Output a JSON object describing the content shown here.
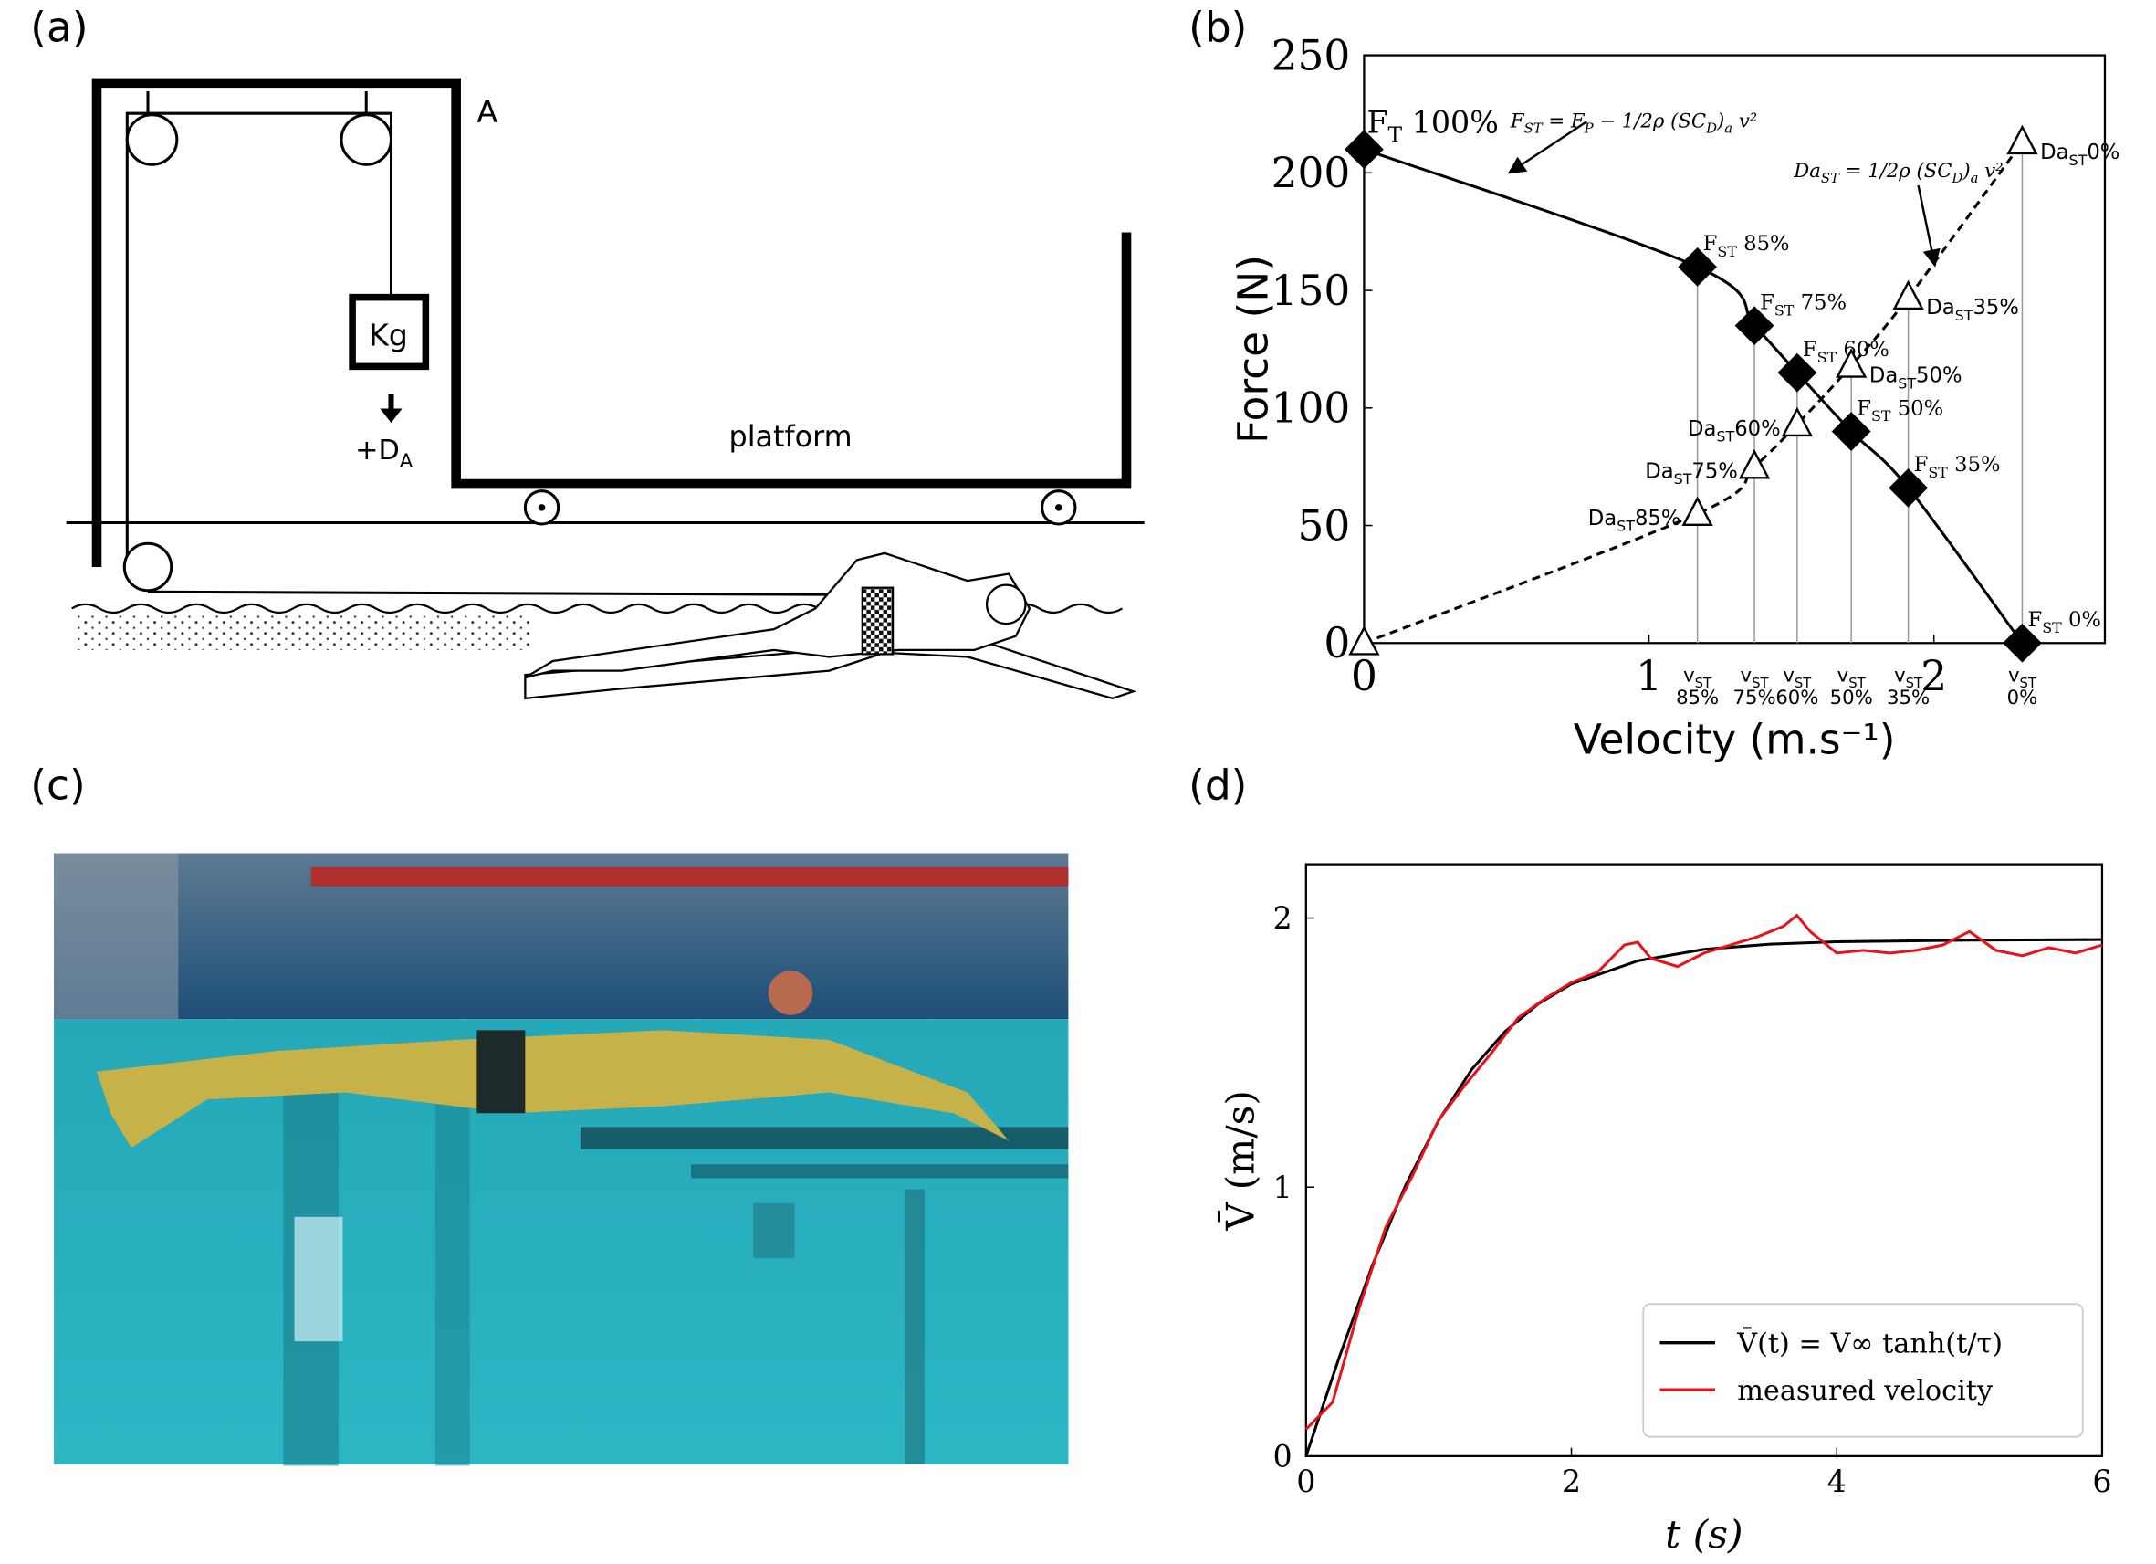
{
  "panel_labels": [
    "(a)",
    "(b)",
    "(c)",
    "(d)"
  ],
  "diagram": {
    "frame_label": "A",
    "weight_label": "Kg",
    "force_label": [
      "+D",
      "A"
    ],
    "platform_label": "platform"
  },
  "chart_data": [
    {
      "type": "line",
      "xlabel": "Velocity (m.s⁻¹)",
      "ylabel": "Force (N)",
      "xlim": [
        0,
        2.6
      ],
      "ylim": [
        0,
        250
      ],
      "xticks": [
        0,
        1,
        2
      ],
      "yticks": [
        0,
        50,
        100,
        150,
        200,
        250
      ],
      "x": [
        0,
        1.17,
        1.37,
        1.52,
        1.71,
        1.91,
        2.31
      ],
      "x_labels": [
        null,
        [
          "v",
          "ST",
          "85%"
        ],
        [
          "v",
          "ST",
          "75%"
        ],
        [
          "v",
          "ST",
          "60%"
        ],
        [
          "v",
          "ST",
          "50%"
        ],
        [
          "v",
          "ST",
          "35%"
        ],
        [
          "v",
          "ST",
          "0%"
        ]
      ],
      "series": [
        {
          "color": "#000000",
          "marker": "diamond",
          "line_style": "solid",
          "values": [
            210,
            160,
            135,
            115,
            90,
            66,
            0
          ],
          "point_labels": [
            [
              "F",
              "T",
              " 100%"
            ],
            [
              "F",
              "ST",
              " 85%"
            ],
            [
              "F",
              "ST",
              " 75%"
            ],
            [
              "F",
              "ST",
              " 60%"
            ],
            [
              "F",
              "ST",
              " 50%"
            ],
            [
              "F",
              "ST",
              " 35%"
            ],
            [
              "F",
              "ST",
              " 0%"
            ]
          ]
        },
        {
          "color": "#000000",
          "marker": "triangle",
          "line_style": "dashed",
          "values": [
            0,
            55,
            75,
            93,
            118,
            147,
            213
          ],
          "point_labels": [
            null,
            [
              "Da",
              "ST",
              "85%"
            ],
            [
              "Da",
              "ST",
              "75%"
            ],
            [
              "Da",
              "ST",
              "60%"
            ],
            [
              "Da",
              "ST",
              "50%"
            ],
            [
              "Da",
              "ST",
              "35%"
            ],
            [
              "Da",
              "ST",
              "0%"
            ]
          ]
        }
      ],
      "annotations": [
        [
          "F",
          "ST",
          " = F",
          "P",
          " − 1/2ρ (SC",
          "D",
          ")",
          "a",
          " v²"
        ],
        [
          "Da",
          "ST",
          " = 1/2ρ (SC",
          "D",
          ")",
          "a",
          " v²"
        ]
      ]
    },
    {
      "type": "line",
      "xlabel": "t (s)",
      "ylabel": "V̄ (m/s)",
      "xlim": [
        0,
        6
      ],
      "ylim": [
        0,
        2.2
      ],
      "xticks": [
        0,
        2,
        4,
        6
      ],
      "yticks": [
        0,
        1,
        2
      ],
      "legend": "lower right",
      "series": [
        {
          "name": "V̄(t) = V∞ tanh(t/τ)",
          "color": "#000000",
          "x": [
            0,
            0.25,
            0.5,
            0.75,
            1,
            1.25,
            1.5,
            1.75,
            2,
            2.5,
            3,
            3.5,
            4,
            5,
            6
          ],
          "values": [
            0,
            0.367,
            0.709,
            1.006,
            1.248,
            1.438,
            1.578,
            1.681,
            1.755,
            1.841,
            1.884,
            1.903,
            1.912,
            1.918,
            1.92
          ]
        },
        {
          "name": "measured velocity",
          "color": "#e8121a",
          "x": [
            0,
            0.2,
            0.4,
            0.6,
            0.8,
            1.0,
            1.2,
            1.4,
            1.6,
            1.8,
            2.0,
            2.2,
            2.4,
            2.5,
            2.6,
            2.8,
            3.0,
            3.2,
            3.4,
            3.6,
            3.7,
            3.8,
            4.0,
            4.2,
            4.4,
            4.6,
            4.8,
            5.0,
            5.2,
            5.4,
            5.6,
            5.8,
            6.0
          ],
          "values": [
            0.1,
            0.2,
            0.55,
            0.85,
            1.04,
            1.25,
            1.38,
            1.5,
            1.63,
            1.7,
            1.76,
            1.8,
            1.9,
            1.91,
            1.85,
            1.82,
            1.87,
            1.9,
            1.93,
            1.97,
            2.01,
            1.95,
            1.87,
            1.88,
            1.87,
            1.88,
            1.9,
            1.95,
            1.88,
            1.86,
            1.89,
            1.87,
            1.9
          ]
        }
      ]
    }
  ]
}
